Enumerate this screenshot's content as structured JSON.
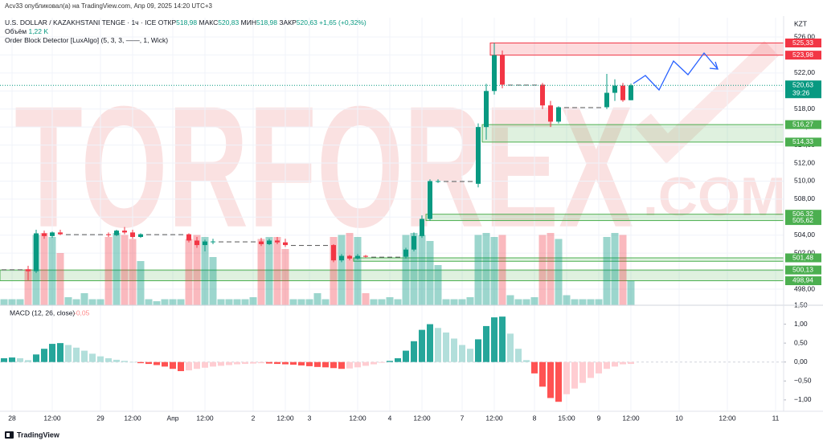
{
  "publisher": "Acv33 опубликовал(а) на TradingView.com, Апр 09, 2025 14:20 UTC+3",
  "watermark": [
    "TORFOREX",
    ".COM"
  ],
  "footer": "TradingView",
  "chart_data": [
    {
      "type": "candlestick",
      "title": "U.S. DOLLAR / KAZAKHSTANI TENGE · 1ч · ICE",
      "ohlc": [
        {
          "label": "ОТКР",
          "value": "518,98"
        },
        {
          "label": "МАКС",
          "value": "520,83"
        },
        {
          "label": "МИН",
          "value": "518,98"
        },
        {
          "label": "ЗАКР",
          "value": "520,63"
        }
      ],
      "change": "+1,65 (+0,32%)",
      "volume_label": "Объём",
      "volume_value": "1,22 K",
      "indicator": "Order Block Detector [LuxAlgo] (5, 3, 3, ——, 1, Wick)",
      "currency": "KZT",
      "colors": {
        "up": "#089981",
        "down": "#f23645"
      },
      "categories": [
        null,
        "28",
        null,
        null,
        null,
        null,
        "12:00",
        null,
        null,
        null,
        null,
        null,
        "29",
        null,
        null,
        null,
        "12:00",
        null,
        null,
        null,
        null,
        "Апр",
        null,
        null,
        null,
        "12:00",
        null,
        null,
        null,
        null,
        null,
        "2",
        null,
        null,
        null,
        "12:00",
        null,
        null,
        "3",
        null,
        null,
        null,
        null,
        null,
        "12:00",
        null,
        null,
        null,
        "4",
        null,
        null,
        null,
        "12:00",
        null,
        null,
        null,
        null,
        "7",
        null,
        null,
        null,
        "12:00",
        null,
        null,
        null,
        null,
        "8",
        null,
        null,
        null,
        "15:00",
        null,
        null,
        null,
        "9",
        null,
        null,
        null,
        "12:00",
        null,
        null,
        null,
        null,
        null,
        "10",
        null,
        null,
        null,
        null,
        null,
        "12:00",
        null,
        null,
        null,
        null,
        null,
        "11",
        null
      ],
      "open": [
        500.2,
        500.2,
        500.2,
        500.2,
        500.0,
        504.2,
        503.9,
        504.3,
        504.1,
        504.1,
        504.1,
        504.1,
        504.1,
        504.1,
        504.0,
        504.5,
        504.3,
        503.8,
        504.1,
        504.1,
        504.1,
        504.1,
        504.1,
        504.1,
        503.4,
        502.9,
        503.3,
        503.3,
        503.3,
        503.3,
        503.3,
        503.3,
        503.3,
        503.0,
        503.4,
        503.2,
        502.9,
        502.9,
        502.9,
        502.9,
        502.9,
        502.9,
        501.2,
        501.7,
        501.4,
        501.7,
        501.6,
        501.6,
        501.6,
        501.6,
        501.6,
        502.4,
        503.9,
        505.8,
        510.0,
        510.0,
        510.0,
        510.0,
        510.0,
        509.7,
        516.0,
        520.0,
        523.98,
        520.7,
        520.7,
        520.7,
        520.7,
        520.7,
        518.4,
        516.6,
        518.2,
        518.2,
        518.2,
        518.2,
        518.2,
        518.2,
        519.8,
        520.6,
        518.98,
        null,
        null,
        null,
        null,
        null,
        null,
        null,
        null,
        null,
        null,
        null,
        null,
        null,
        null,
        null,
        null,
        null,
        null,
        null
      ],
      "high": [
        500.2,
        500.2,
        500.2,
        500.6,
        504.6,
        504.5,
        504.4,
        504.6,
        504.1,
        504.1,
        504.1,
        504.1,
        504.1,
        504.3,
        504.6,
        504.9,
        504.6,
        504.2,
        504.1,
        504.1,
        504.1,
        504.1,
        504.1,
        504.2,
        503.8,
        503.5,
        503.6,
        503.3,
        503.3,
        503.3,
        503.3,
        503.3,
        503.7,
        503.6,
        503.8,
        503.6,
        502.9,
        502.9,
        502.9,
        502.9,
        502.9,
        503.0,
        501.9,
        501.8,
        501.9,
        501.8,
        501.6,
        501.6,
        501.6,
        501.6,
        502.6,
        504.3,
        506.2,
        510.2,
        510.2,
        510.0,
        510.0,
        510.0,
        510.0,
        516.4,
        520.8,
        525.33,
        524.5,
        520.7,
        520.7,
        520.7,
        520.7,
        520.9,
        518.9,
        518.3,
        518.2,
        518.2,
        518.2,
        518.2,
        518.2,
        521.9,
        521.3,
        520.9,
        520.83,
        null,
        null,
        null,
        null,
        null,
        null,
        null,
        null,
        null,
        null,
        null,
        null,
        null,
        null,
        null,
        null,
        null,
        null,
        null
      ],
      "low": [
        500.2,
        500.2,
        500.2,
        499.0,
        499.8,
        503.6,
        503.7,
        504.0,
        504.1,
        504.1,
        504.1,
        504.1,
        504.1,
        503.8,
        503.9,
        504.1,
        503.6,
        503.7,
        504.1,
        504.1,
        504.1,
        504.1,
        504.1,
        503.2,
        502.6,
        502.2,
        503.0,
        503.3,
        503.3,
        503.3,
        503.3,
        503.3,
        502.8,
        502.9,
        503.0,
        502.7,
        502.9,
        502.9,
        502.9,
        502.9,
        502.9,
        501.0,
        501.0,
        501.2,
        501.3,
        501.5,
        501.6,
        501.6,
        501.6,
        501.6,
        501.4,
        502.2,
        503.7,
        505.6,
        509.8,
        510.0,
        510.0,
        510.0,
        510.0,
        509.3,
        514.6,
        519.6,
        520.3,
        520.7,
        520.7,
        520.7,
        520.7,
        518.0,
        516.0,
        516.4,
        518.2,
        518.2,
        518.2,
        518.2,
        518.2,
        518.0,
        518.9,
        518.8,
        518.98,
        null,
        null,
        null,
        null,
        null,
        null,
        null,
        null,
        null,
        null,
        null,
        null,
        null,
        null,
        null,
        null,
        null,
        null,
        null
      ],
      "close": [
        500.2,
        500.2,
        500.2,
        500.0,
        504.2,
        503.9,
        504.3,
        504.1,
        504.1,
        504.1,
        504.1,
        504.1,
        504.1,
        504.0,
        504.5,
        504.3,
        503.8,
        504.1,
        504.1,
        504.1,
        504.1,
        504.1,
        504.1,
        503.4,
        502.9,
        503.3,
        503.3,
        503.3,
        503.3,
        503.3,
        503.3,
        503.3,
        503.0,
        503.4,
        503.2,
        502.9,
        502.9,
        502.9,
        502.9,
        502.9,
        502.9,
        501.2,
        501.7,
        501.4,
        501.7,
        501.6,
        501.6,
        501.6,
        501.6,
        501.6,
        502.4,
        503.9,
        505.8,
        510.0,
        510.0,
        510.0,
        510.0,
        510.0,
        510.0,
        516.0,
        520.0,
        523.98,
        520.7,
        520.7,
        520.7,
        520.7,
        520.7,
        518.4,
        516.6,
        518.2,
        518.2,
        518.2,
        518.2,
        518.2,
        518.2,
        519.8,
        520.6,
        518.98,
        520.63,
        null,
        null,
        null,
        null,
        null,
        null,
        null,
        null,
        null,
        null,
        null,
        null,
        null,
        null,
        null,
        null,
        null,
        null,
        null
      ],
      "volume": [
        0.3,
        0.3,
        0.3,
        1.8,
        3.5,
        3.6,
        3.4,
        2.6,
        0.4,
        0.3,
        0.6,
        0.3,
        0.3,
        3.4,
        3.6,
        3.5,
        3.3,
        2.2,
        0.3,
        0.2,
        0.3,
        0.3,
        0.3,
        3.3,
        3.5,
        3.4,
        2.4,
        0.3,
        0.3,
        0.3,
        0.3,
        0.4,
        3.3,
        3.4,
        3.4,
        2.8,
        0.3,
        0.3,
        0.3,
        0.6,
        0.3,
        3.4,
        3.5,
        3.6,
        3.4,
        0.6,
        0.3,
        0.3,
        0.4,
        0.3,
        3.5,
        3.6,
        3.5,
        3.2,
        2.0,
        0.3,
        0.3,
        0.3,
        0.4,
        3.5,
        3.6,
        3.4,
        3.5,
        0.5,
        0.3,
        0.3,
        0.4,
        3.5,
        3.6,
        3.3,
        0.5,
        0.3,
        0.3,
        0.3,
        0.3,
        3.4,
        3.6,
        3.5,
        1.22,
        null,
        null,
        null,
        null,
        null,
        null,
        null,
        null,
        null,
        null,
        null,
        null,
        null,
        null,
        null,
        null,
        null,
        null,
        null
      ],
      "ylim": [
        496.22,
        528.14
      ],
      "yticks": [
        {
          "value": 498,
          "label": "498,00"
        },
        {
          "value": 500,
          "label": "500,00"
        },
        {
          "value": 502,
          "label": "502,00"
        },
        {
          "value": 504,
          "label": "504,00"
        },
        {
          "value": 506,
          "label": "506,00"
        },
        {
          "value": 508,
          "label": "508,00"
        },
        {
          "value": 510,
          "label": "510,00"
        },
        {
          "value": 512,
          "label": "512,00"
        },
        {
          "value": 514,
          "label": "514,00"
        },
        {
          "value": 516,
          "label": "516,00"
        },
        {
          "value": 518,
          "label": "518,00"
        },
        {
          "value": 520,
          "label": "520,00"
        },
        {
          "value": 522,
          "label": "522,00"
        },
        {
          "value": 524,
          "label": "524,00"
        },
        {
          "value": 526,
          "label": "526,00"
        }
      ],
      "grid": true,
      "zones": [
        {
          "top": {
            "value": 525.33,
            "label": "525,33"
          },
          "bottom": {
            "value": 523.98,
            "label": "523,98"
          },
          "start": 61,
          "color": "#f23645"
        },
        {
          "top": {
            "value": 516.27,
            "label": "516,27"
          },
          "bottom": {
            "value": 514.33,
            "label": "514,33"
          },
          "start": 60,
          "color": "#4caf50"
        },
        {
          "top": {
            "value": 506.32,
            "label": "506,32"
          },
          "bottom": {
            "value": 505.62,
            "label": "505,62"
          },
          "start": 53,
          "color": "#4caf50"
        },
        {
          "top": {
            "value": 501.48,
            "label": "501,48"
          },
          "bottom": 501.1,
          "start": 44,
          "color": "#4caf50"
        },
        {
          "top": {
            "value": 500.13,
            "label": "500,13"
          },
          "bottom": {
            "value": 498.94,
            "label": "498,94"
          },
          "start": 0,
          "color": "#4caf50"
        }
      ],
      "last_price": {
        "value": 520.63,
        "label": "520,63",
        "countdown": "39:26",
        "color": "#089981"
      }
    },
    {
      "type": "histogram",
      "title": "MACD (12, 26, close)",
      "last_value": {
        "value": -0.05,
        "label": "-0,05"
      },
      "colors": [
        "#26a69a",
        "#b2dfdb",
        "#ff5252",
        "#ffcdd2"
      ],
      "values": [
        0.1,
        0.12,
        0.1,
        0.05,
        0.2,
        0.35,
        0.48,
        0.5,
        0.45,
        0.38,
        0.3,
        0.22,
        0.15,
        0.1,
        0.06,
        0.03,
        0.0,
        -0.03,
        -0.05,
        -0.08,
        -0.12,
        -0.18,
        -0.24,
        -0.22,
        -0.18,
        -0.15,
        -0.12,
        -0.1,
        -0.08,
        -0.06,
        -0.05,
        -0.04,
        -0.03,
        -0.04,
        -0.05,
        -0.06,
        -0.07,
        -0.09,
        -0.11,
        -0.13,
        -0.14,
        -0.16,
        -0.18,
        -0.17,
        -0.14,
        -0.1,
        -0.06,
        -0.02,
        0.03,
        0.1,
        0.3,
        0.55,
        0.85,
        1.0,
        0.9,
        0.78,
        0.62,
        0.45,
        0.35,
        0.6,
        0.95,
        1.18,
        1.2,
        0.75,
        0.35,
        0.05,
        -0.3,
        -0.65,
        -0.95,
        -1.05,
        -0.85,
        -0.7,
        -0.55,
        -0.42,
        -0.3,
        -0.18,
        -0.12,
        -0.06,
        -0.05
      ],
      "ylim": [
        -1.3,
        1.5
      ],
      "yticks": [
        {
          "value": 1.5,
          "label": "1,50"
        },
        {
          "value": 1,
          "label": "1,00"
        },
        {
          "value": 0.5,
          "label": "0,50"
        },
        {
          "value": 0,
          "label": "0,00"
        },
        {
          "value": -0.5,
          "label": "−0,50"
        },
        {
          "value": -1,
          "label": "−1,00"
        }
      ]
    }
  ]
}
